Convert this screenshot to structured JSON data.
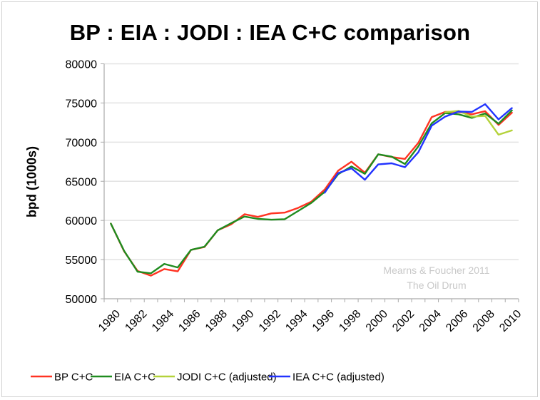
{
  "chart_data": {
    "type": "line",
    "title": "BP : EIA : JODI : IEA C+C comparison",
    "xlabel": "",
    "ylabel": "bpd (1000s)",
    "ylim": [
      50000,
      80000
    ],
    "yticks": [
      50000,
      55000,
      60000,
      65000,
      70000,
      75000,
      80000
    ],
    "grid": true,
    "legend_position": "bottom",
    "categories": [
      1980,
      1981,
      1982,
      1983,
      1984,
      1985,
      1986,
      1987,
      1988,
      1989,
      1990,
      1991,
      1992,
      1993,
      1994,
      1995,
      1996,
      1997,
      1998,
      1999,
      2000,
      2001,
      2002,
      2003,
      2004,
      2005,
      2006,
      2007,
      2008,
      2009,
      2010
    ],
    "xtick_labels": [
      "1980",
      "1982",
      "1984",
      "1986",
      "1988",
      "1990",
      "1992",
      "1994",
      "1996",
      "1998",
      "2000",
      "2002",
      "2004",
      "2006",
      "2008",
      "2010"
    ],
    "series": [
      {
        "name": "BP C+C",
        "color": "#ff3322",
        "values": [
          59600,
          56050,
          53550,
          52950,
          53800,
          53500,
          56250,
          56600,
          58750,
          59500,
          60800,
          60450,
          60900,
          61000,
          61600,
          62400,
          63950,
          66350,
          67500,
          66100,
          68450,
          68100,
          67850,
          69900,
          73200,
          73850,
          73850,
          73550,
          73950,
          72200,
          73750
        ]
      },
      {
        "name": "EIA C+C",
        "color": "#1f8c1f",
        "values": [
          59600,
          56100,
          53450,
          53250,
          54450,
          54000,
          56250,
          56650,
          58750,
          59650,
          60500,
          60200,
          60100,
          60150,
          61200,
          62250,
          63650,
          65900,
          66900,
          65950,
          68450,
          68150,
          67200,
          69450,
          72400,
          73700,
          73550,
          73100,
          73650,
          72350,
          74050
        ]
      },
      {
        "name": "JODI C+C (adjusted)",
        "color": "#b4d23a",
        "values": [
          null,
          null,
          null,
          null,
          null,
          null,
          null,
          null,
          null,
          null,
          null,
          null,
          null,
          null,
          null,
          null,
          null,
          null,
          null,
          null,
          null,
          null,
          null,
          null,
          null,
          73800,
          74000,
          73250,
          73350,
          70950,
          71500
        ]
      },
      {
        "name": "IEA C+C (adjusted)",
        "color": "#2233ff",
        "values": [
          null,
          null,
          null,
          null,
          null,
          null,
          null,
          null,
          null,
          null,
          null,
          null,
          null,
          null,
          null,
          null,
          63550,
          66050,
          66650,
          65200,
          67150,
          67300,
          66800,
          68700,
          72100,
          73250,
          73900,
          73850,
          74850,
          72900,
          74350
        ]
      }
    ],
    "annotations": [
      "Mearns & Foucher 2011",
      "The Oil Drum"
    ]
  },
  "labels": {
    "title": "BP : EIA : JODI : IEA C+C comparison",
    "ylabel": "bpd (1000s)",
    "watermark_line1": "Mearns & Foucher 2011",
    "watermark_line2": "The Oil Drum"
  }
}
